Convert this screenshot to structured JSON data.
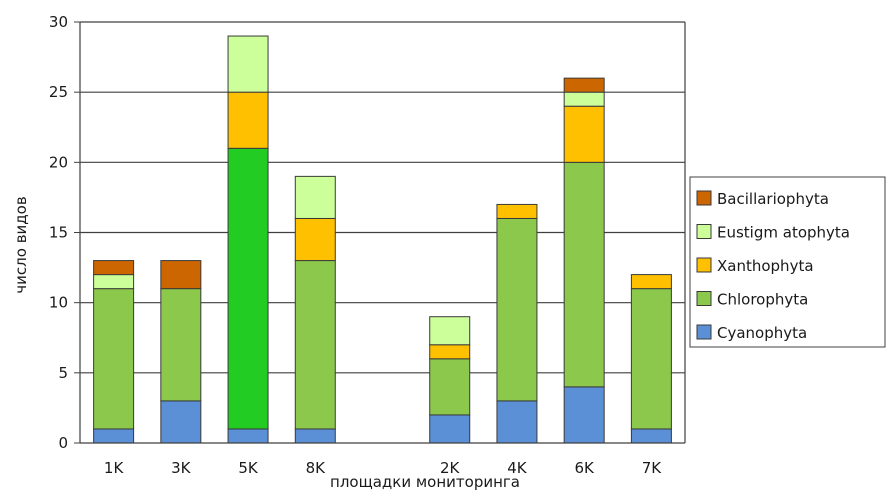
{
  "chart_data": {
    "type": "bar",
    "stacked": true,
    "title": "",
    "xlabel": "площадки мониторинга",
    "ylabel": "число видов",
    "ylim": [
      0,
      30
    ],
    "yticks": [
      "0",
      "5",
      "10",
      "15",
      "20",
      "25",
      "30"
    ],
    "grid": true,
    "legend_position": "right",
    "categories": [
      "1K",
      "3K",
      "5K",
      "8K",
      "",
      "2K",
      "4K",
      "6K",
      "7K"
    ],
    "series": [
      {
        "name": "Cyanophyta",
        "color": "#5b8fd6",
        "values": [
          1,
          3,
          1,
          1,
          0,
          2,
          3,
          4,
          1
        ]
      },
      {
        "name": "Chlorophyta",
        "color": "#8cc84b",
        "values": [
          10,
          8,
          20,
          12,
          0,
          4,
          13,
          16,
          10
        ]
      },
      {
        "name": "Xanthophyta",
        "color": "#ffc000",
        "values": [
          0,
          0,
          4,
          3,
          0,
          1,
          1,
          4,
          1
        ]
      },
      {
        "name": "Eustigm atophyta",
        "color": "#ccff99",
        "values": [
          1,
          0,
          4,
          3,
          0,
          2,
          0,
          1,
          0
        ]
      },
      {
        "name": "Bacillariophyta",
        "color": "#cc6600",
        "values": [
          1,
          2,
          0,
          0,
          0,
          0,
          0,
          1,
          0
        ]
      }
    ],
    "highlight": {
      "category": "5K",
      "series": "Chlorophyta",
      "color": "#22cc22"
    }
  }
}
